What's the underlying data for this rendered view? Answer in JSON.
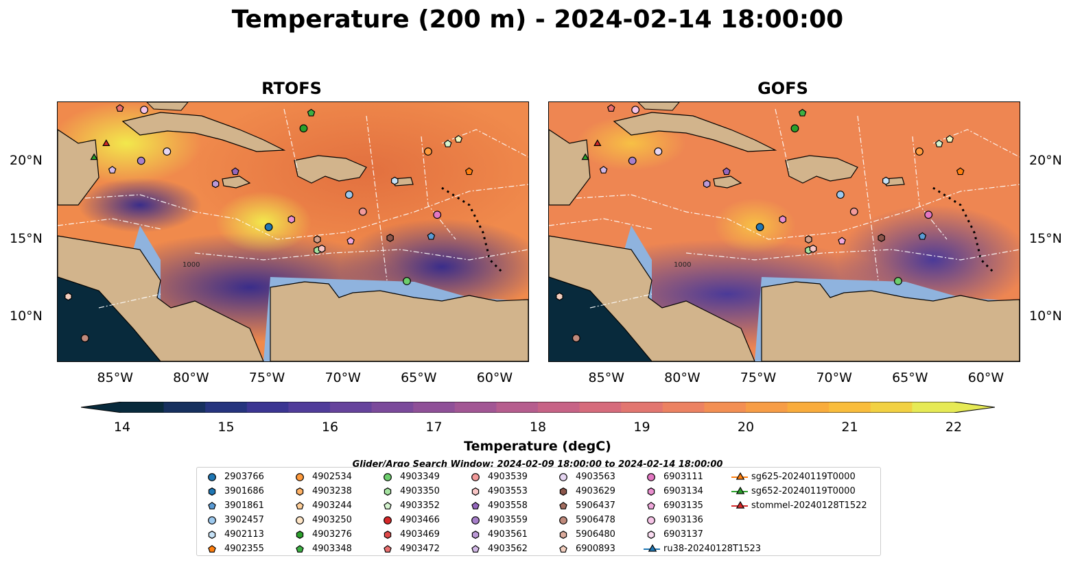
{
  "title": "Temperature (200 m) - 2024-02-14 18:00:00",
  "panels": [
    {
      "title": "RTOFS"
    },
    {
      "title": "GOFS"
    }
  ],
  "lon_ticks": [
    "85°W",
    "80°W",
    "75°W",
    "70°W",
    "65°W",
    "60°W"
  ],
  "lat_ticks": [
    "20°N",
    "15°N",
    "10°N"
  ],
  "contour_labels": [
    "1000",
    "1000"
  ],
  "colorbar": {
    "label": "Temperature (degC)",
    "ticks": [
      "14",
      "15",
      "16",
      "17",
      "18",
      "19",
      "20",
      "21",
      "22"
    ],
    "min": 14,
    "max": 22,
    "extend": "both",
    "colors": [
      "#082a3c",
      "#16305e",
      "#25347e",
      "#3b3592",
      "#503c9a",
      "#66439c",
      "#7b4a9b",
      "#8f5098",
      "#a25694",
      "#b65d8e",
      "#c76386",
      "#d66b7c",
      "#e27670",
      "#ec8262",
      "#f38f53",
      "#f79d46",
      "#f9ac3c",
      "#f9bd3c",
      "#f2d142",
      "#e6ea55"
    ]
  },
  "colors": {
    "land": "#d2b48c",
    "shallow": "#8fb3de",
    "deep": "#0b2a3a"
  },
  "search_window": "Glider/Argo Search Window: 2024-02-09 18:00:00 to 2024-02-14 18:00:00",
  "legend": [
    {
      "label": "2903766",
      "marker": "circle",
      "color": "#1f77b4"
    },
    {
      "label": "3901686",
      "marker": "hexagon",
      "color": "#1f77b4"
    },
    {
      "label": "3901861",
      "marker": "pentagon",
      "color": "#5a9bd5"
    },
    {
      "label": "3902457",
      "marker": "circle",
      "color": "#9dc9ee"
    },
    {
      "label": "4902113",
      "marker": "hexagon",
      "color": "#c6e2f7"
    },
    {
      "label": "4902355",
      "marker": "pentagon",
      "color": "#ff7f0e"
    },
    {
      "label": "4902534",
      "marker": "circle",
      "color": "#ff9a3c"
    },
    {
      "label": "4903238",
      "marker": "hexagon",
      "color": "#ffb266"
    },
    {
      "label": "4903244",
      "marker": "pentagon",
      "color": "#ffcf99"
    },
    {
      "label": "4903250",
      "marker": "circle",
      "color": "#ffe6c7"
    },
    {
      "label": "4903276",
      "marker": "hexagon",
      "color": "#2ca02c"
    },
    {
      "label": "4903348",
      "marker": "pentagon",
      "color": "#3cb043"
    },
    {
      "label": "4903349",
      "marker": "circle",
      "color": "#6dce6d"
    },
    {
      "label": "4903350",
      "marker": "hexagon",
      "color": "#a6e3a1"
    },
    {
      "label": "4903352",
      "marker": "pentagon",
      "color": "#d6f5d0"
    },
    {
      "label": "4903466",
      "marker": "circle",
      "color": "#d62728"
    },
    {
      "label": "4903469",
      "marker": "hexagon",
      "color": "#e04a4a"
    },
    {
      "label": "4903472",
      "marker": "pentagon",
      "color": "#ea7070"
    },
    {
      "label": "4903539",
      "marker": "circle",
      "color": "#f29a9a"
    },
    {
      "label": "4903553",
      "marker": "hexagon",
      "color": "#f8c5c5"
    },
    {
      "label": "4903558",
      "marker": "pentagon",
      "color": "#9467bd"
    },
    {
      "label": "4903559",
      "marker": "circle",
      "color": "#a77fca"
    },
    {
      "label": "4903561",
      "marker": "hexagon",
      "color": "#bb99d6"
    },
    {
      "label": "4903562",
      "marker": "pentagon",
      "color": "#d2b8e6"
    },
    {
      "label": "4903563",
      "marker": "circle",
      "color": "#e6d6f2"
    },
    {
      "label": "4903629",
      "marker": "hexagon",
      "color": "#8c564b"
    },
    {
      "label": "5906437",
      "marker": "pentagon",
      "color": "#a36d60"
    },
    {
      "label": "5906478",
      "marker": "circle",
      "color": "#c08a7c"
    },
    {
      "label": "5906480",
      "marker": "hexagon",
      "color": "#dbab9c"
    },
    {
      "label": "6900893",
      "marker": "pentagon",
      "color": "#f3cfbf"
    },
    {
      "label": "6903111",
      "marker": "circle",
      "color": "#e377c2"
    },
    {
      "label": "6903134",
      "marker": "hexagon",
      "color": "#ea8fcf"
    },
    {
      "label": "6903135",
      "marker": "pentagon",
      "color": "#f0a8dc"
    },
    {
      "label": "6903136",
      "marker": "circle",
      "color": "#f6c4e7"
    },
    {
      "label": "6903137",
      "marker": "hexagon",
      "color": "#fbdcf2"
    },
    {
      "label": "ru38-20240128T1523",
      "marker": "triangle-line",
      "color": "#1f77b4"
    },
    {
      "label": "sg625-20240119T0000",
      "marker": "triangle-line",
      "color": "#ff7f0e"
    },
    {
      "label": "sg652-20240119T0000",
      "marker": "triangle-line",
      "color": "#2ca02c"
    },
    {
      "label": "stommel-20240128T1522",
      "marker": "triangle-line",
      "color": "#d62728"
    }
  ],
  "floats": [
    {
      "lon": -75.1,
      "lat": 15.7,
      "marker": "circle",
      "color": "#1f77b4"
    },
    {
      "lon": -66.8,
      "lat": 18.7,
      "marker": "hexagon",
      "color": "#c6e2f7"
    },
    {
      "lon": -64.4,
      "lat": 15.1,
      "marker": "pentagon",
      "color": "#5a9bd5"
    },
    {
      "lon": -69.8,
      "lat": 17.8,
      "marker": "circle",
      "color": "#9dc9ee"
    },
    {
      "lon": -61.9,
      "lat": 19.3,
      "marker": "pentagon",
      "color": "#ff7f0e"
    },
    {
      "lon": -64.6,
      "lat": 20.6,
      "marker": "circle",
      "color": "#ff9a3c"
    },
    {
      "lon": -72.8,
      "lat": 22.1,
      "marker": "circle",
      "color": "#2ca02c"
    },
    {
      "lon": -72.3,
      "lat": 23.1,
      "marker": "pentagon",
      "color": "#3cb043"
    },
    {
      "lon": -66.0,
      "lat": 12.2,
      "marker": "circle",
      "color": "#6dce6d"
    },
    {
      "lon": -71.9,
      "lat": 14.2,
      "marker": "hexagon",
      "color": "#a6e3a1"
    },
    {
      "lon": -63.3,
      "lat": 21.1,
      "marker": "pentagon",
      "color": "#d6f5d0"
    },
    {
      "lon": -62.6,
      "lat": 21.4,
      "marker": "pentagon",
      "color": "#f3f7c0"
    },
    {
      "lon": -71.9,
      "lat": 14.9,
      "marker": "hexagon",
      "color": "#d5a08a"
    },
    {
      "lon": -67.1,
      "lat": 15.0,
      "marker": "hexagon",
      "color": "#8c564b"
    },
    {
      "lon": -71.6,
      "lat": 14.3,
      "marker": "hexagon",
      "color": "#f8c5c5"
    },
    {
      "lon": -77.3,
      "lat": 19.3,
      "marker": "pentagon",
      "color": "#9467bd"
    },
    {
      "lon": -83.5,
      "lat": 20.0,
      "marker": "circle",
      "color": "#a77fca"
    },
    {
      "lon": -78.6,
      "lat": 18.5,
      "marker": "hexagon",
      "color": "#bb99d6"
    },
    {
      "lon": -85.4,
      "lat": 19.4,
      "marker": "pentagon",
      "color": "#d2b8e6"
    },
    {
      "lon": -81.8,
      "lat": 20.6,
      "marker": "circle",
      "color": "#e6d6f2"
    },
    {
      "lon": -88.3,
      "lat": 11.2,
      "marker": "hexagon",
      "color": "#f3cfbf"
    },
    {
      "lon": -87.2,
      "lat": 8.5,
      "marker": "circle",
      "color": "#c08a7c"
    },
    {
      "lon": -68.9,
      "lat": 16.7,
      "marker": "circle",
      "color": "#f29a9a"
    },
    {
      "lon": -64.0,
      "lat": 16.5,
      "marker": "circle",
      "color": "#e377c2"
    },
    {
      "lon": -73.6,
      "lat": 16.2,
      "marker": "hexagon",
      "color": "#ea8fcf"
    },
    {
      "lon": -69.7,
      "lat": 14.8,
      "marker": "pentagon",
      "color": "#f0a8dc"
    },
    {
      "lon": -83.3,
      "lat": 23.3,
      "marker": "circle",
      "color": "#f6c4e7"
    },
    {
      "lon": -84.9,
      "lat": 23.4,
      "marker": "pentagon",
      "color": "#ea7070"
    },
    {
      "lon": -86.6,
      "lat": 20.2,
      "marker": "triangle",
      "color": "#2ca02c"
    },
    {
      "lon": -85.8,
      "lat": 21.1,
      "marker": "triangle",
      "color": "#d62728"
    }
  ]
}
